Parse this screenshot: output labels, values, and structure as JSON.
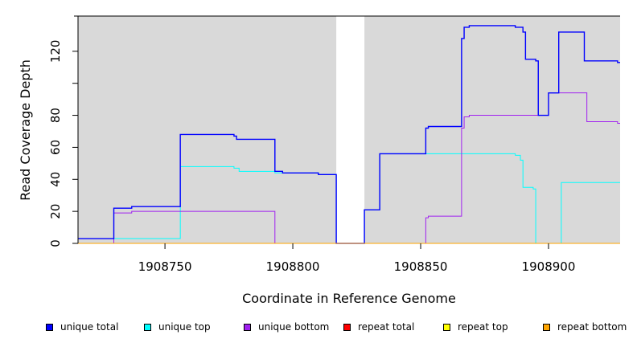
{
  "chart_data": {
    "type": "line",
    "xlabel": "Coordinate in Reference Genome",
    "ylabel": "Read Coverage Depth",
    "xlim": [
      1908716,
      1908928
    ],
    "ylim": [
      0,
      142
    ],
    "x_ticks": [
      1908750,
      1908800,
      1908850,
      1908900
    ],
    "x_tick_labels": [
      "1908750",
      "1908800",
      "1908850",
      "1908900"
    ],
    "y_ticks": [
      0,
      20,
      40,
      60,
      80,
      100,
      120
    ],
    "y_tick_labels": [
      "0",
      "20",
      "40",
      "60",
      "80",
      "",
      "120"
    ],
    "grid": false,
    "legend_position": "bottom",
    "background_color": "#d9d9d9",
    "gap_regions": [
      [
        1908817,
        1908828
      ]
    ],
    "series": [
      {
        "name": "unique total",
        "color": "#0000ff",
        "steps": [
          [
            1908716,
            3
          ],
          [
            1908730,
            22
          ],
          [
            1908737,
            23
          ],
          [
            1908756,
            68
          ],
          [
            1908777,
            67
          ],
          [
            1908778,
            65
          ],
          [
            1908793,
            45
          ],
          [
            1908796,
            44
          ],
          [
            1908810,
            43
          ],
          [
            1908817,
            0
          ],
          [
            1908828,
            21
          ],
          [
            1908834,
            56
          ],
          [
            1908852,
            72
          ],
          [
            1908853,
            73
          ],
          [
            1908866,
            128
          ],
          [
            1908867,
            135
          ],
          [
            1908869,
            136
          ],
          [
            1908887,
            135
          ],
          [
            1908890,
            132
          ],
          [
            1908891,
            115
          ],
          [
            1908895,
            114
          ],
          [
            1908896,
            80
          ],
          [
            1908900,
            94
          ],
          [
            1908904,
            132
          ],
          [
            1908914,
            114
          ],
          [
            1908927,
            113
          ]
        ]
      },
      {
        "name": "unique top",
        "color": "#00ffff",
        "steps": [
          [
            1908716,
            3
          ],
          [
            1908756,
            48
          ],
          [
            1908777,
            47
          ],
          [
            1908779,
            45
          ],
          [
            1908793,
            44
          ],
          [
            1908810,
            43
          ],
          [
            1908817,
            0
          ],
          [
            1908828,
            21
          ],
          [
            1908834,
            56
          ],
          [
            1908887,
            55
          ],
          [
            1908889,
            52
          ],
          [
            1908890,
            35
          ],
          [
            1908894,
            34
          ],
          [
            1908895,
            0
          ],
          [
            1908905,
            38
          ],
          [
            1908928,
            38
          ]
        ]
      },
      {
        "name": "unique bottom",
        "color": "#a020f0",
        "steps": [
          [
            1908716,
            0
          ],
          [
            1908730,
            19
          ],
          [
            1908737,
            20
          ],
          [
            1908793,
            0
          ],
          [
            1908852,
            16
          ],
          [
            1908853,
            17
          ],
          [
            1908866,
            72
          ],
          [
            1908867,
            79
          ],
          [
            1908869,
            80
          ],
          [
            1908900,
            94
          ],
          [
            1908915,
            76
          ],
          [
            1908927,
            75
          ]
        ]
      },
      {
        "name": "repeat total",
        "color": "#ff0000",
        "steps": [
          [
            1908716,
            0
          ],
          [
            1908928,
            0
          ]
        ]
      },
      {
        "name": "repeat top",
        "color": "#ffff00",
        "steps": [
          [
            1908716,
            0
          ],
          [
            1908928,
            0
          ]
        ]
      },
      {
        "name": "repeat bottom",
        "color": "#ffa500",
        "steps": [
          [
            1908716,
            0
          ],
          [
            1908928,
            0
          ]
        ]
      }
    ]
  }
}
